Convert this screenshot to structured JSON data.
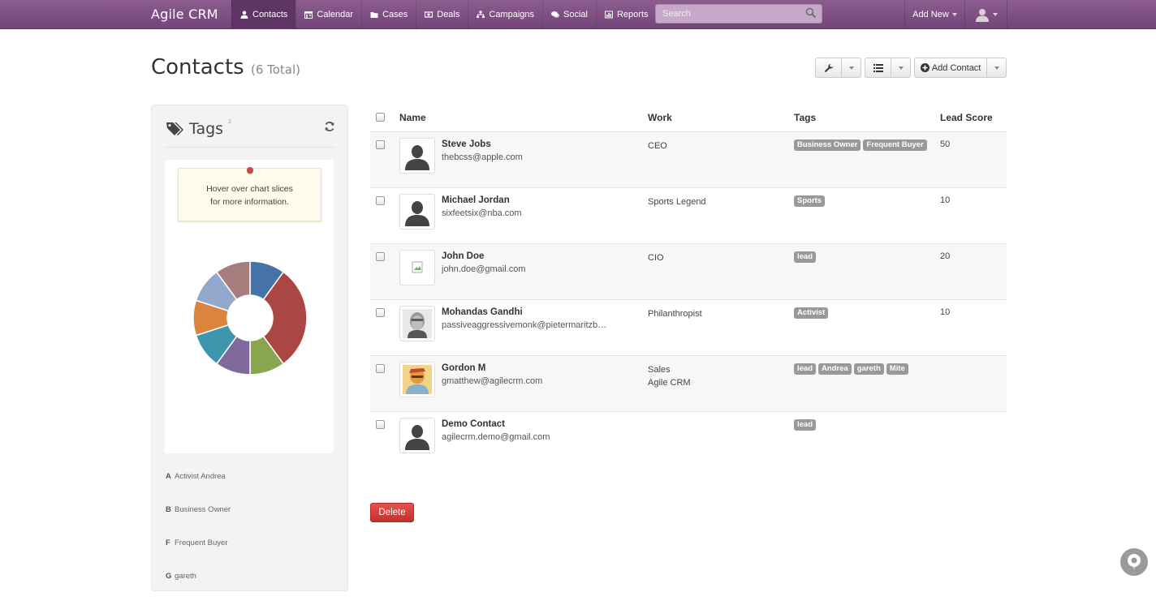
{
  "app": {
    "brand": "Agile CRM"
  },
  "nav": [
    {
      "label": "Contacts",
      "icon": "user-icon"
    },
    {
      "label": "Calendar",
      "icon": "calendar-icon"
    },
    {
      "label": "Cases",
      "icon": "folder-icon"
    },
    {
      "label": "Deals",
      "icon": "money-icon"
    },
    {
      "label": "Campaigns",
      "icon": "sitemap-icon"
    },
    {
      "label": "Social",
      "icon": "comments-icon"
    },
    {
      "label": "Reports",
      "icon": "bar-chart-icon"
    }
  ],
  "search": {
    "placeholder": "Search"
  },
  "header": {
    "add_new": "Add New",
    "title": "Contacts",
    "count": "(6 Total)",
    "add_contact": "Add Contact"
  },
  "tags_panel": {
    "title": "Tags",
    "sup": "2",
    "tooltip_line1": "Hover over chart slices",
    "tooltip_line2": "for more information.",
    "list": [
      {
        "letter": "A",
        "label": "Activist Andrea"
      },
      {
        "letter": "B",
        "label": "Business Owner"
      },
      {
        "letter": "F",
        "label": "Frequent Buyer"
      },
      {
        "letter": "G",
        "label": "gareth"
      }
    ],
    "donut_colors": [
      "#4572a7",
      "#aa4643",
      "#89a54e",
      "#80699b",
      "#3d96ae",
      "#db843d",
      "#92a8cd",
      "#a47d7c"
    ],
    "donut_values": [
      1,
      3,
      1,
      1,
      1,
      1,
      1,
      1
    ]
  },
  "table": {
    "headers": {
      "name": "Name",
      "work": "Work",
      "tags": "Tags",
      "score": "Lead Score"
    },
    "rows": [
      {
        "name": "Steve Jobs",
        "email": "thebcss@apple.com",
        "work": "CEO",
        "work2": "",
        "tags": [
          "Business Owner",
          "Frequent Buyer"
        ],
        "score": "50",
        "avatar": "silhouette"
      },
      {
        "name": "Michael Jordan",
        "email": "sixfeetsix@nba.com",
        "work": "Sports Legend",
        "work2": "",
        "tags": [
          "Sports"
        ],
        "score": "10",
        "avatar": "silhouette"
      },
      {
        "name": "John Doe",
        "email": "john.doe@gmail.com",
        "work": "CIO",
        "work2": "",
        "tags": [
          "lead"
        ],
        "score": "20",
        "avatar": "broken-image"
      },
      {
        "name": "Mohandas Gandhi",
        "email": "passiveaggressivemonk@pietermaritzb…",
        "work": "Philanthropist",
        "work2": "",
        "tags": [
          "Activist"
        ],
        "score": "10",
        "avatar": "photo-gandhi"
      },
      {
        "name": "Gordon M",
        "email": "gmatthew@agilecrm.com",
        "work": "Sales",
        "work2": "Agile CRM",
        "tags": [
          "lead",
          "Andrea",
          "gareth",
          "Mite"
        ],
        "score": "",
        "avatar": "photo-gordon"
      },
      {
        "name": "Demo Contact",
        "email": "agilecrm.demo@gmail.com",
        "work": "",
        "work2": "",
        "tags": [
          "lead"
        ],
        "score": "",
        "avatar": "silhouette"
      }
    ]
  },
  "actions": {
    "delete": "Delete"
  }
}
